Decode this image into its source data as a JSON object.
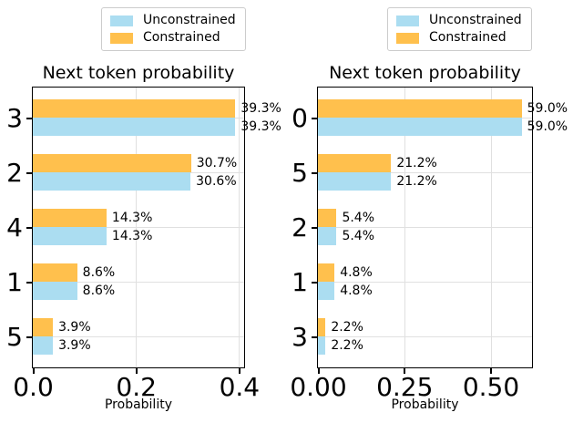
{
  "figure": {
    "colors": {
      "unconstrained": "#ABDDF1",
      "constrained": "#FFC04D",
      "grid": "#E0E0E0",
      "spine": "#000000",
      "background": "#FFFFFF",
      "legend_border": "#CCCCCC"
    },
    "legend": {
      "items": [
        {
          "label": "Unconstrained",
          "color": "#ABDDF1"
        },
        {
          "label": "Constrained",
          "color": "#FFC04D"
        }
      ]
    }
  },
  "chart_data": [
    {
      "type": "bar",
      "orientation": "horizontal",
      "title": "Next token probability",
      "xlabel": "Probability",
      "ylabel": "",
      "categories": [
        "3",
        "2",
        "4",
        "1",
        "5"
      ],
      "series": [
        {
          "name": "Constrained",
          "color": "#FFC04D",
          "values": [
            0.393,
            0.307,
            0.143,
            0.086,
            0.039
          ],
          "bar_labels": [
            "39.3%",
            "30.7%",
            "14.3%",
            "8.6%",
            "3.9%"
          ]
        },
        {
          "name": "Unconstrained",
          "color": "#ABDDF1",
          "values": [
            0.393,
            0.306,
            0.143,
            0.086,
            0.039
          ],
          "bar_labels": [
            "39.3%",
            "30.6%",
            "14.3%",
            "8.6%",
            "3.9%"
          ]
        }
      ],
      "xlim": [
        0,
        0.41
      ],
      "xticks": [
        {
          "value": 0.0,
          "label": "0.0"
        },
        {
          "value": 0.2,
          "label": "0.2"
        },
        {
          "value": 0.4,
          "label": "0.4"
        }
      ],
      "grid": true,
      "legend_entries": [
        "Unconstrained",
        "Constrained"
      ],
      "legend_position": "above"
    },
    {
      "type": "bar",
      "orientation": "horizontal",
      "title": "Next token probability",
      "xlabel": "Probability",
      "ylabel": "",
      "categories": [
        "0",
        "5",
        "2",
        "1",
        "3"
      ],
      "series": [
        {
          "name": "Constrained",
          "color": "#FFC04D",
          "values": [
            0.59,
            0.212,
            0.054,
            0.048,
            0.022
          ],
          "bar_labels": [
            "59.0%",
            "21.2%",
            "5.4%",
            "4.8%",
            "2.2%"
          ]
        },
        {
          "name": "Unconstrained",
          "color": "#ABDDF1",
          "values": [
            0.59,
            0.212,
            0.054,
            0.048,
            0.022
          ],
          "bar_labels": [
            "59.0%",
            "21.2%",
            "5.4%",
            "4.8%",
            "2.2%"
          ]
        }
      ],
      "xlim": [
        0,
        0.62
      ],
      "xticks": [
        {
          "value": 0.0,
          "label": "0.00"
        },
        {
          "value": 0.25,
          "label": "0.25"
        },
        {
          "value": 0.5,
          "label": "0.50"
        }
      ],
      "grid": true,
      "legend_entries": [
        "Unconstrained",
        "Constrained"
      ],
      "legend_position": "above"
    }
  ]
}
